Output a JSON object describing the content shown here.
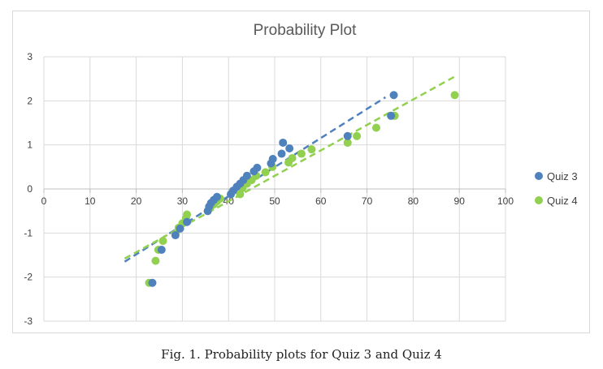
{
  "chart_data": {
    "type": "scatter",
    "title": "Probability Plot",
    "xlim": [
      0,
      100
    ],
    "ylim": [
      -3,
      3
    ],
    "x_ticks": [
      0,
      10,
      20,
      30,
      40,
      50,
      60,
      70,
      80,
      90,
      100
    ],
    "y_ticks": [
      -3,
      -2,
      -1,
      0,
      1,
      2,
      3
    ],
    "grid": true,
    "legend_position": "right",
    "series": [
      {
        "name": "Quiz 3",
        "color": "#4f81bd",
        "points": [
          [
            23.5,
            -2.13
          ],
          [
            25.5,
            -1.38
          ],
          [
            28.5,
            -1.05
          ],
          [
            29.5,
            -0.9
          ],
          [
            31,
            -0.75
          ],
          [
            35.5,
            -0.5
          ],
          [
            35.8,
            -0.4
          ],
          [
            36.2,
            -0.32
          ],
          [
            36.8,
            -0.25
          ],
          [
            37.5,
            -0.18
          ],
          [
            40.5,
            -0.12
          ],
          [
            41,
            -0.04
          ],
          [
            41.8,
            0.05
          ],
          [
            42.5,
            0.12
          ],
          [
            43.2,
            0.2
          ],
          [
            44,
            0.3
          ],
          [
            45.5,
            0.4
          ],
          [
            46.2,
            0.48
          ],
          [
            49.2,
            0.58
          ],
          [
            49.6,
            0.68
          ],
          [
            51.5,
            0.8
          ],
          [
            51.8,
            1.05
          ],
          [
            53.2,
            0.92
          ],
          [
            65.8,
            1.2
          ],
          [
            75.2,
            1.66
          ],
          [
            75.8,
            2.13
          ]
        ],
        "trend": [
          [
            17.5,
            -1.65
          ],
          [
            74,
            2.08
          ]
        ]
      },
      {
        "name": "Quiz 4",
        "color": "#92d050",
        "points": [
          [
            22.8,
            -2.13
          ],
          [
            24.2,
            -1.63
          ],
          [
            24.8,
            -1.38
          ],
          [
            25.8,
            -1.18
          ],
          [
            28.5,
            -1.02
          ],
          [
            29.2,
            -0.88
          ],
          [
            30,
            -0.78
          ],
          [
            30.8,
            -0.66
          ],
          [
            31,
            -0.58
          ],
          [
            35.5,
            -0.5
          ],
          [
            36,
            -0.42
          ],
          [
            36.8,
            -0.35
          ],
          [
            37.5,
            -0.28
          ],
          [
            38.2,
            -0.22
          ],
          [
            42.5,
            -0.12
          ],
          [
            43,
            0.02
          ],
          [
            44,
            0.12
          ],
          [
            45,
            0.2
          ],
          [
            46,
            0.3
          ],
          [
            48,
            0.38
          ],
          [
            49.5,
            0.5
          ],
          [
            53,
            0.6
          ],
          [
            53.8,
            0.7
          ],
          [
            55.8,
            0.8
          ],
          [
            58,
            0.9
          ],
          [
            65.8,
            1.05
          ],
          [
            67.8,
            1.2
          ],
          [
            72,
            1.39
          ],
          [
            76,
            1.66
          ],
          [
            89,
            2.13
          ]
        ],
        "trend": [
          [
            17.5,
            -1.58
          ],
          [
            89,
            2.55
          ]
        ]
      }
    ]
  },
  "caption": "Fig. 1. Probability plots for Quiz 3 and Quiz 4"
}
